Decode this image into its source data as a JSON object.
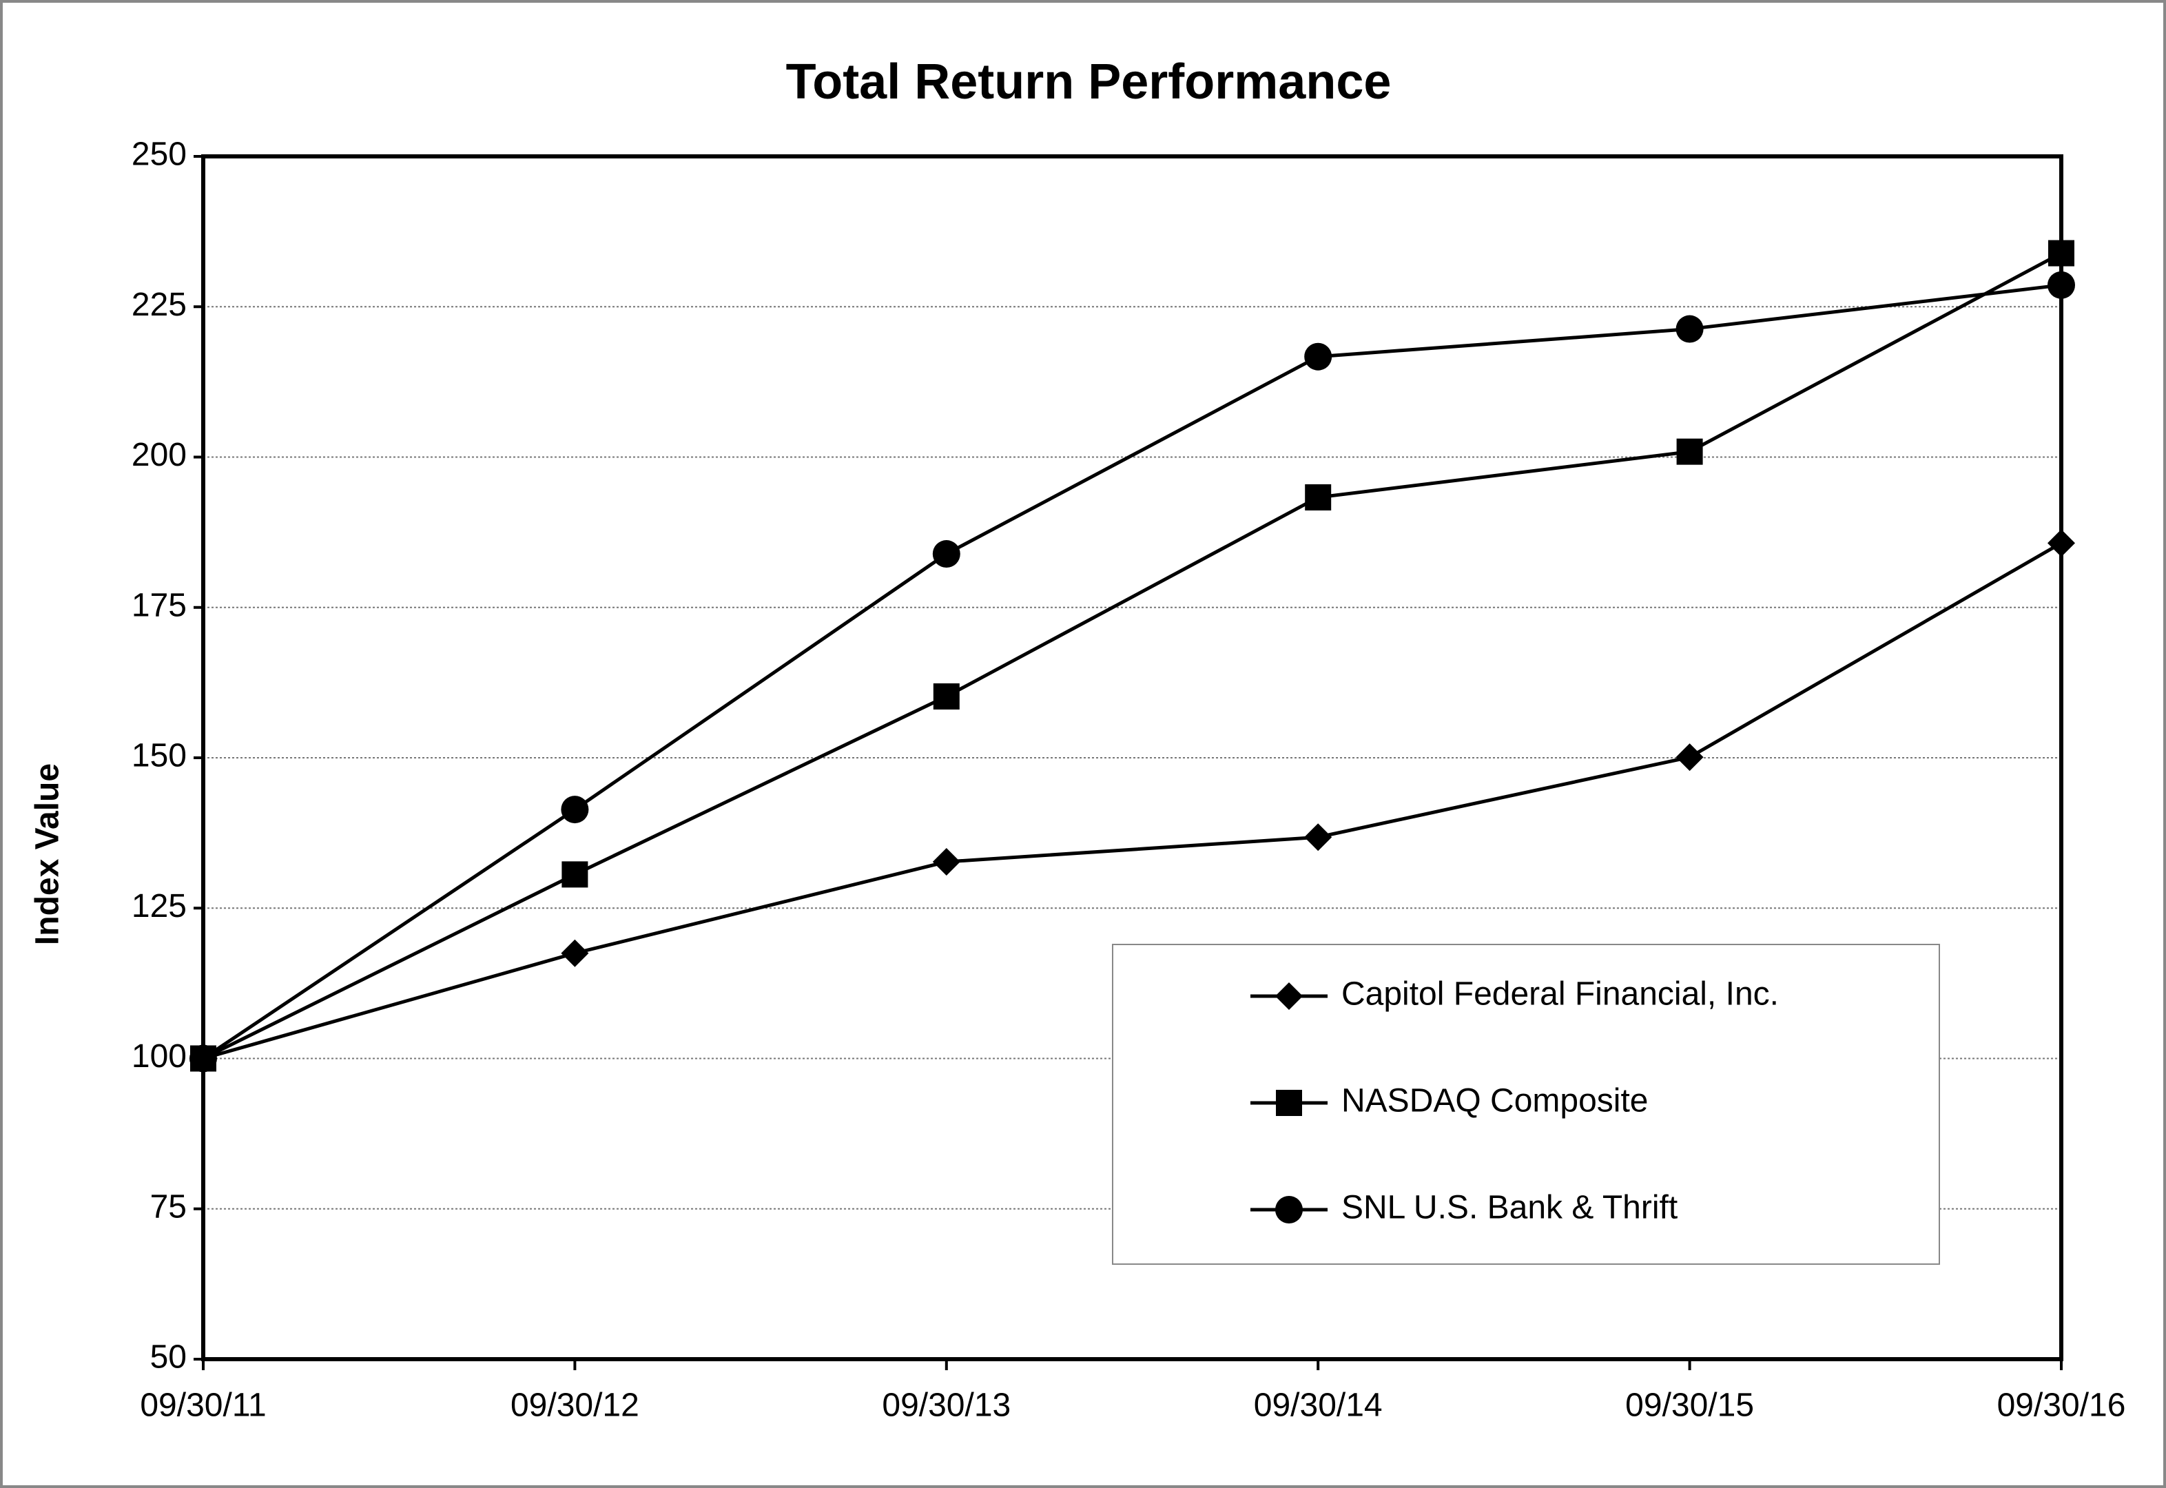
{
  "chart_data": {
    "type": "line",
    "title": "Total Return Performance",
    "y_label": "Index Value",
    "categories": [
      "09/30/11",
      "09/30/12",
      "09/30/13",
      "09/30/14",
      "09/30/15",
      "09/30/16"
    ],
    "series": [
      {
        "name": "Capitol Federal Financial, Inc.",
        "color": "#000000",
        "marker": "diamond",
        "values": [
          100,
          117.5,
          132.7,
          136.8,
          150.1,
          185.7
        ]
      },
      {
        "name": "NASDAQ Composite",
        "color": "#000000",
        "marker": "square",
        "values": [
          100,
          130.6,
          160.2,
          193.3,
          200.9,
          233.9
        ]
      },
      {
        "name": "SNL U.S. Bank & Thrift",
        "color": "#000000",
        "marker": "circle",
        "values": [
          100,
          141.4,
          183.9,
          216.7,
          221.3,
          228.6
        ]
      }
    ],
    "ylim": [
      50,
      250
    ],
    "yticks": [
      50,
      75,
      100,
      125,
      150,
      175,
      200,
      225,
      250
    ],
    "grid": true,
    "legend": "lower right"
  }
}
